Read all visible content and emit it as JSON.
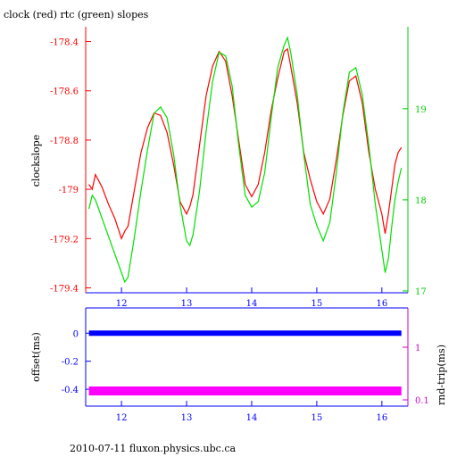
{
  "chart_data": [
    {
      "type": "line",
      "title": "clock (red) rtc (green) slopes",
      "ylabel": "clockslope",
      "x_ticks": [
        "12",
        "13",
        "14",
        "15",
        "16"
      ],
      "xlim": [
        11.45,
        16.4
      ],
      "ylim": [
        -179.42,
        -178.34
      ],
      "y_ticks": [
        "-178.4",
        "-178.6",
        "-178.8",
        "-179",
        "-179.2",
        "-179.4"
      ],
      "y2lim": [
        16.98,
        19.9
      ],
      "y2_ticks": [
        "17",
        "18",
        "19"
      ],
      "series": [
        {
          "color": "#ff0000",
          "axis": "left",
          "x": [
            11.5,
            11.55,
            11.6,
            11.7,
            11.8,
            11.9,
            12.0,
            12.05,
            12.1,
            12.2,
            12.3,
            12.4,
            12.5,
            12.6,
            12.7,
            12.8,
            12.9,
            13.0,
            13.05,
            13.1,
            13.2,
            13.3,
            13.4,
            13.5,
            13.6,
            13.7,
            13.8,
            13.9,
            14.0,
            14.1,
            14.2,
            14.3,
            14.4,
            14.5,
            14.55,
            14.6,
            14.7,
            14.8,
            14.9,
            15.0,
            15.1,
            15.2,
            15.3,
            15.4,
            15.5,
            15.6,
            15.7,
            15.8,
            15.9,
            16.0,
            16.05,
            16.1,
            16.15,
            16.2,
            16.25,
            16.3
          ],
          "values": [
            -178.98,
            -179.0,
            -178.94,
            -178.99,
            -179.06,
            -179.12,
            -179.2,
            -179.17,
            -179.15,
            -179.0,
            -178.85,
            -178.75,
            -178.69,
            -178.7,
            -178.77,
            -178.9,
            -179.05,
            -179.1,
            -179.07,
            -179.02,
            -178.82,
            -178.62,
            -178.5,
            -178.44,
            -178.48,
            -178.62,
            -178.8,
            -178.98,
            -179.03,
            -178.98,
            -178.85,
            -178.68,
            -178.55,
            -178.44,
            -178.43,
            -178.5,
            -178.65,
            -178.85,
            -178.96,
            -179.05,
            -179.1,
            -179.04,
            -178.88,
            -178.7,
            -178.56,
            -178.54,
            -178.65,
            -178.85,
            -179.0,
            -179.1,
            -179.18,
            -179.1,
            -179.0,
            -178.9,
            -178.85,
            -178.83
          ]
        },
        {
          "color": "#00e000",
          "axis": "right",
          "x": [
            11.5,
            11.55,
            11.6,
            11.7,
            11.8,
            11.9,
            12.0,
            12.05,
            12.1,
            12.2,
            12.3,
            12.4,
            12.5,
            12.6,
            12.7,
            12.8,
            12.9,
            13.0,
            13.05,
            13.1,
            13.2,
            13.3,
            13.4,
            13.5,
            13.6,
            13.7,
            13.8,
            13.9,
            14.0,
            14.1,
            14.2,
            14.3,
            14.4,
            14.5,
            14.55,
            14.6,
            14.7,
            14.8,
            14.9,
            15.0,
            15.1,
            15.2,
            15.3,
            15.4,
            15.5,
            15.6,
            15.7,
            15.8,
            15.9,
            16.0,
            16.05,
            16.1,
            16.15,
            16.2,
            16.25,
            16.3
          ],
          "values": [
            17.9,
            18.05,
            18.0,
            17.8,
            17.6,
            17.4,
            17.2,
            17.1,
            17.15,
            17.6,
            18.1,
            18.55,
            18.95,
            19.02,
            18.9,
            18.5,
            17.95,
            17.55,
            17.5,
            17.62,
            18.1,
            18.75,
            19.3,
            19.62,
            19.58,
            19.25,
            18.6,
            18.05,
            17.92,
            17.98,
            18.3,
            18.9,
            19.45,
            19.7,
            19.78,
            19.62,
            19.15,
            18.5,
            17.95,
            17.72,
            17.55,
            17.75,
            18.3,
            18.95,
            19.4,
            19.45,
            19.15,
            18.6,
            17.95,
            17.45,
            17.2,
            17.35,
            17.7,
            18.0,
            18.2,
            18.35
          ]
        }
      ]
    },
    {
      "type": "scatter",
      "ylabel": "offset(ms)",
      "y2label": "rnd-trip(ms)",
      "x_ticks": [
        "12",
        "13",
        "14",
        "15",
        "16"
      ],
      "xlim": [
        11.45,
        16.4
      ],
      "ylim": [
        -0.52,
        0.18
      ],
      "y_ticks": [
        "0",
        "-0.2",
        "-0.4"
      ],
      "y2_ticks": [
        "1",
        "0.1"
      ],
      "series": [
        {
          "color": "#0000ff",
          "axis": "left",
          "x": [
            11.5,
            16.3
          ],
          "values": [
            0.0,
            0.0
          ]
        },
        {
          "color": "#ff00ff",
          "axis": "right",
          "x": [
            11.5,
            16.3
          ],
          "values": [
            0.13,
            0.13
          ]
        }
      ]
    }
  ],
  "footer": "2010-07-11 fluxon.physics.ubc.ca"
}
